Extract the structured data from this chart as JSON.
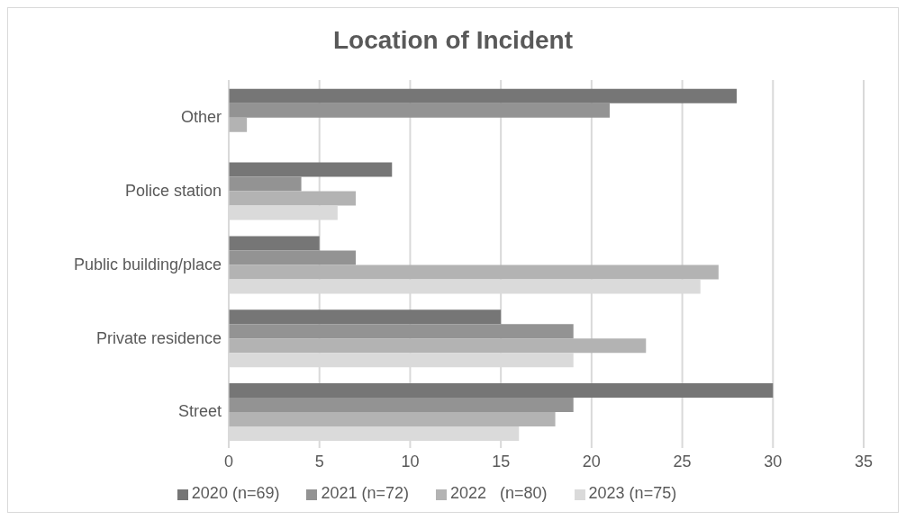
{
  "chart_data": {
    "type": "bar",
    "orientation": "horizontal",
    "title": "Location of Incident",
    "categories": [
      "Other",
      "Police station",
      "Public building/place",
      "Private residence",
      "Street"
    ],
    "series": [
      {
        "name": "2020 (n=69)",
        "color": "#767676",
        "values": [
          28,
          9,
          5,
          15,
          30
        ]
      },
      {
        "name": "2021 (n=72)",
        "color": "#939393",
        "values": [
          21,
          4,
          7,
          19,
          19
        ]
      },
      {
        "name": "2022   (n=80)",
        "color": "#b3b3b3",
        "values": [
          1,
          7,
          27,
          23,
          18
        ]
      },
      {
        "name": "2023 (n=75)",
        "color": "#dadada",
        "values": [
          0,
          6,
          26,
          19,
          16
        ]
      }
    ],
    "xlim": [
      0,
      35
    ],
    "xticks": [
      0,
      5,
      10,
      15,
      20,
      25,
      30,
      35
    ],
    "grid": "x",
    "legend": "bottom"
  }
}
